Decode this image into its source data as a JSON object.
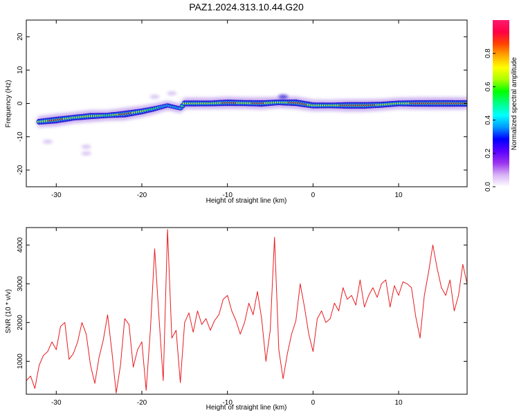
{
  "title": "PAZ1.2024.313.10.44.G20",
  "colors": {
    "snr_line": "#e8191e",
    "ridge_hot": "#e8191e",
    "ridge_warm": "#f0e21a",
    "ridge_mid": "#2ee33a",
    "ridge_cool": "#1f9de9",
    "ridge_edge": "#2a1bd6",
    "ridge_halo": "#b590e8"
  },
  "chart_data": [
    {
      "type": "heatmap",
      "xlabel": "Height of straight line (km)",
      "ylabel": "Frequency (Hz)",
      "xlim": [
        -33.5,
        18
      ],
      "ylim": [
        -25,
        25
      ],
      "xticks": [
        -30,
        -20,
        -10,
        0,
        10
      ],
      "yticks": [
        -20,
        -10,
        0,
        10,
        20
      ],
      "colorbar": {
        "label": "Normalized spectral amplitude",
        "range": [
          0.0,
          1.0
        ],
        "ticks": [
          "0.0",
          "0.2",
          "0.4",
          "0.6",
          "0.8"
        ],
        "colormap": [
          "#ffffff",
          "#d7b2f5",
          "#9a33ee",
          "#5a00ff",
          "#0000ff",
          "#0099ff",
          "#00ffff",
          "#00ff88",
          "#00ff00",
          "#aaff00",
          "#ffff00",
          "#ffaa00",
          "#ff4400",
          "#ff0044",
          "#ff1a6e"
        ]
      },
      "ridge": {
        "x": [
          -32.0,
          -30.0,
          -28.0,
          -26.0,
          -24.0,
          -22.0,
          -20.0,
          -18.5,
          -17.0,
          -15.5,
          -15.0,
          -12.0,
          -10.0,
          -8.0,
          -6.0,
          -4.0,
          -2.0,
          0.0,
          2.0,
          4.0,
          6.0,
          8.0,
          10.0,
          12.0,
          14.0,
          16.0,
          18.0
        ],
        "frequency": [
          -5.5,
          -5.0,
          -4.3,
          -3.8,
          -3.6,
          -3.2,
          -2.4,
          -1.6,
          -0.6,
          -1.5,
          0.0,
          0.0,
          0.2,
          0.1,
          0.0,
          0.3,
          0.2,
          -0.6,
          -0.6,
          -0.6,
          -0.6,
          -0.4,
          0.0,
          0.0,
          0.0,
          0.0,
          0.0
        ],
        "amplitude": [
          0.75,
          0.95,
          0.7,
          0.85,
          0.6,
          0.95,
          0.75,
          0.55,
          0.35,
          0.3,
          0.8,
          0.75,
          0.9,
          0.8,
          0.9,
          0.7,
          0.95,
          0.8,
          0.7,
          0.95,
          0.95,
          0.8,
          0.75,
          0.9,
          0.95,
          0.95,
          0.9
        ]
      },
      "noise_patches": [
        {
          "x": -31.0,
          "frequency": -11.5,
          "amplitude": 0.1
        },
        {
          "x": -26.5,
          "frequency": -13.0,
          "amplitude": 0.1
        },
        {
          "x": -26.5,
          "frequency": -15.0,
          "amplitude": 0.1
        },
        {
          "x": -16.5,
          "frequency": 3.0,
          "amplitude": 0.1
        },
        {
          "x": -18.5,
          "frequency": 2.0,
          "amplitude": 0.15
        },
        {
          "x": -3.5,
          "frequency": 2.0,
          "amplitude": 0.35
        }
      ]
    },
    {
      "type": "line",
      "xlabel": "Height of straight line (km)",
      "ylabel": "SNR (10 * v/v)",
      "xlim": [
        -33.5,
        18
      ],
      "ylim": [
        150,
        4450
      ],
      "xticks": [
        -30,
        -20,
        -10,
        0,
        10
      ],
      "yticks": [
        1000,
        2000,
        3000,
        4000
      ],
      "series": [
        {
          "x": [
            -33.5,
            -33.0,
            -32.5,
            -32.0,
            -31.5,
            -31.0,
            -30.5,
            -30.0,
            -29.5,
            -29.0,
            -28.5,
            -28.0,
            -27.5,
            -27.0,
            -26.5,
            -26.0,
            -25.5,
            -25.0,
            -24.5,
            -24.0,
            -23.5,
            -23.0,
            -22.5,
            -22.0,
            -21.5,
            -21.0,
            -20.5,
            -20.0,
            -19.5,
            -19.0,
            -18.5,
            -18.0,
            -17.5,
            -17.0,
            -16.5,
            -16.0,
            -15.5,
            -15.0,
            -14.5,
            -14.0,
            -13.5,
            -13.0,
            -12.5,
            -12.0,
            -11.5,
            -11.0,
            -10.5,
            -10.0,
            -9.5,
            -9.0,
            -8.5,
            -8.0,
            -7.5,
            -7.0,
            -6.5,
            -6.0,
            -5.5,
            -5.0,
            -4.5,
            -4.0,
            -3.5,
            -3.0,
            -2.5,
            -2.0,
            -1.5,
            -1.0,
            -0.5,
            0.0,
            0.5,
            1.0,
            1.5,
            2.0,
            2.5,
            3.0,
            3.5,
            4.0,
            4.5,
            5.0,
            5.5,
            6.0,
            6.5,
            7.0,
            7.5,
            8.0,
            8.5,
            9.0,
            9.5,
            10.0,
            10.5,
            11.0,
            11.5,
            12.0,
            12.5,
            13.0,
            13.5,
            14.0,
            14.5,
            15.0,
            15.5,
            16.0,
            16.5,
            17.0,
            17.5,
            18.0
          ],
          "values": [
            500,
            620,
            300,
            900,
            1150,
            1250,
            1500,
            1300,
            1900,
            2000,
            1050,
            1200,
            1500,
            2000,
            1700,
            900,
            430,
            1100,
            1550,
            2200,
            1250,
            180,
            900,
            2100,
            1950,
            850,
            1300,
            1500,
            250,
            1800,
            3900,
            2150,
            500,
            4400,
            1600,
            1800,
            450,
            2000,
            2250,
            1750,
            2300,
            1950,
            2100,
            1800,
            2050,
            2200,
            2600,
            2700,
            2300,
            2050,
            1700,
            2000,
            2500,
            2200,
            2800,
            2100,
            1000,
            1800,
            4200,
            1300,
            550,
            1200,
            1700,
            2050,
            3000,
            2400,
            1700,
            1250,
            2100,
            2300,
            2000,
            2100,
            2500,
            2300,
            2900,
            2600,
            2700,
            2450,
            3100,
            2400,
            2700,
            2900,
            2650,
            3000,
            3100,
            2400,
            2950,
            2700,
            3050,
            3000,
            2900,
            2150,
            1600,
            2700,
            3300,
            4000,
            3400,
            2900,
            2700,
            3100,
            2300,
            2700,
            3500,
            3000
          ]
        }
      ]
    }
  ]
}
